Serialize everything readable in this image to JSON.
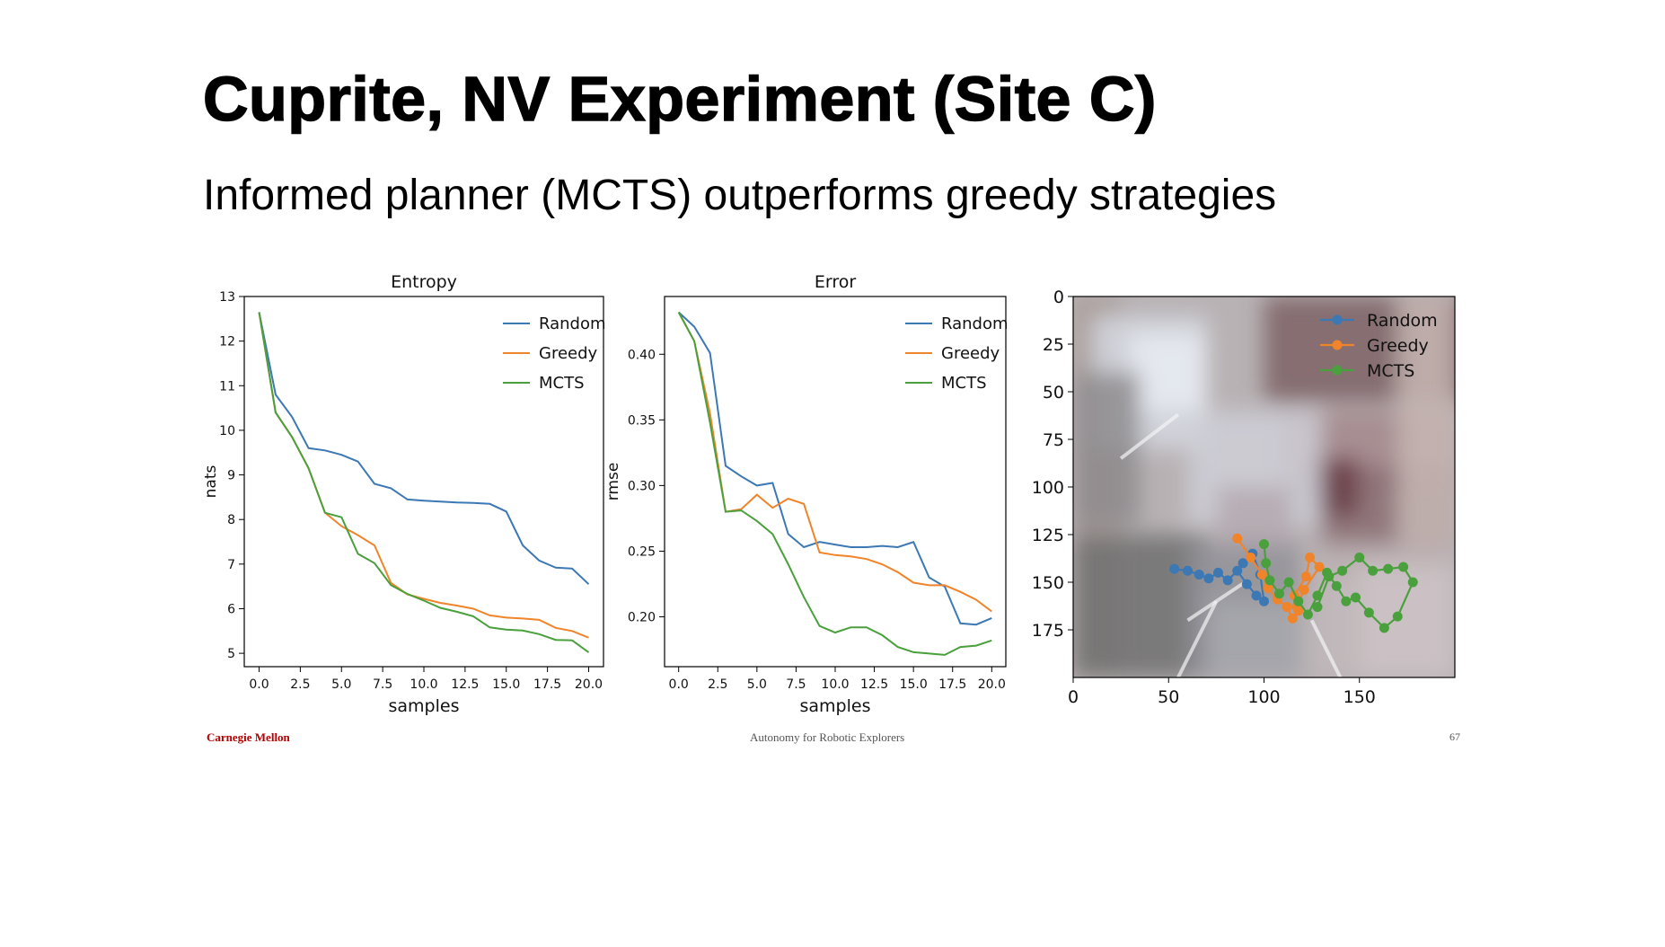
{
  "slide": {
    "title": "Cuprite, NV Experiment (Site C)",
    "subtitle": "Informed planner (MCTS) outperforms greedy strategies"
  },
  "footer": {
    "left": "Carnegie Mellon",
    "center": "Autonomy for Robotic Explorers",
    "right": "67"
  },
  "colors": {
    "random": "#3c78b4",
    "greedy": "#f0842a",
    "mcts": "#4aa03c"
  },
  "chart_data": [
    {
      "type": "line",
      "title": "Entropy",
      "xlabel": "samples",
      "ylabel": "nats",
      "xlim": [
        -0.9,
        20.9
      ],
      "ylim": [
        4.7,
        13.0
      ],
      "xticks": [
        "0.0",
        "2.5",
        "5.0",
        "7.5",
        "10.0",
        "12.5",
        "15.0",
        "17.5",
        "20.0"
      ],
      "yticks": [
        "5",
        "6",
        "7",
        "8",
        "9",
        "10",
        "11",
        "12",
        "13"
      ],
      "legend_position": "top-right",
      "x": [
        0,
        1,
        2,
        3,
        4,
        5,
        6,
        7,
        8,
        9,
        10,
        11,
        12,
        13,
        14,
        15,
        16,
        17,
        18,
        19,
        20
      ],
      "series": [
        {
          "name": "Random",
          "color": "#3c78b4",
          "values": [
            12.65,
            10.8,
            10.3,
            9.6,
            9.55,
            9.45,
            9.3,
            8.8,
            8.7,
            8.45,
            8.42,
            8.4,
            8.38,
            8.37,
            8.35,
            8.18,
            7.42,
            7.08,
            6.92,
            6.9,
            6.55
          ]
        },
        {
          "name": "Greedy",
          "color": "#f0842a",
          "values": [
            12.65,
            10.4,
            9.85,
            9.15,
            8.15,
            7.85,
            7.65,
            7.42,
            6.58,
            6.32,
            6.22,
            6.13,
            6.07,
            6.0,
            5.85,
            5.8,
            5.78,
            5.75,
            5.57,
            5.5,
            5.35
          ]
        },
        {
          "name": "MCTS",
          "color": "#4aa03c",
          "values": [
            12.65,
            10.4,
            9.85,
            9.15,
            8.15,
            8.05,
            7.23,
            7.02,
            6.53,
            6.33,
            6.18,
            6.02,
            5.93,
            5.83,
            5.58,
            5.53,
            5.51,
            5.43,
            5.3,
            5.29,
            5.02
          ]
        }
      ]
    },
    {
      "type": "line",
      "title": "Error",
      "xlabel": "samples",
      "ylabel": "rmse",
      "xlim": [
        -0.9,
        20.9
      ],
      "ylim": [
        0.162,
        0.444
      ],
      "xticks": [
        "0.0",
        "2.5",
        "5.0",
        "7.5",
        "10.0",
        "12.5",
        "15.0",
        "17.5",
        "20.0"
      ],
      "yticks": [
        "0.20",
        "0.25",
        "0.30",
        "0.35",
        "0.40"
      ],
      "legend_position": "top-right",
      "x": [
        0,
        1,
        2,
        3,
        4,
        5,
        6,
        7,
        8,
        9,
        10,
        11,
        12,
        13,
        14,
        15,
        16,
        17,
        18,
        19,
        20
      ],
      "series": [
        {
          "name": "Random",
          "color": "#3c78b4",
          "values": [
            0.432,
            0.421,
            0.401,
            0.315,
            0.307,
            0.3,
            0.302,
            0.263,
            0.253,
            0.257,
            0.255,
            0.253,
            0.253,
            0.254,
            0.253,
            0.257,
            0.23,
            0.223,
            0.195,
            0.194,
            0.199
          ]
        },
        {
          "name": "Greedy",
          "color": "#f0842a",
          "values": [
            0.432,
            0.41,
            0.355,
            0.28,
            0.282,
            0.293,
            0.283,
            0.29,
            0.286,
            0.249,
            0.247,
            0.246,
            0.244,
            0.24,
            0.234,
            0.226,
            0.224,
            0.224,
            0.219,
            0.213,
            0.204
          ]
        },
        {
          "name": "MCTS",
          "color": "#4aa03c",
          "values": [
            0.432,
            0.41,
            0.348,
            0.28,
            0.281,
            0.273,
            0.263,
            0.24,
            0.215,
            0.193,
            0.188,
            0.192,
            0.192,
            0.186,
            0.177,
            0.173,
            0.172,
            0.171,
            0.177,
            0.178,
            0.182
          ]
        }
      ]
    },
    {
      "type": "scatter",
      "title": "",
      "background": "satellite image of Cuprite, NV",
      "xlim": [
        0,
        200
      ],
      "ylim": [
        200,
        0
      ],
      "xticks": [
        "0",
        "50",
        "100",
        "150"
      ],
      "yticks": [
        "0",
        "25",
        "50",
        "75",
        "100",
        "125",
        "150",
        "175"
      ],
      "legend_position": "top-right",
      "series": [
        {
          "name": "Random",
          "color": "#3c78b4",
          "x": [
            53,
            60,
            66,
            71,
            76,
            81,
            86,
            91,
            96,
            100,
            98,
            94,
            89
          ],
          "y": [
            143,
            144,
            146,
            148,
            145,
            149,
            144,
            151,
            157,
            160,
            146,
            135,
            140
          ]
        },
        {
          "name": "Greedy",
          "color": "#f0842a",
          "x": [
            86,
            93,
            99,
            102,
            107,
            112,
            115,
            118,
            116,
            122,
            124,
            129,
            121,
            117
          ],
          "y": [
            127,
            137,
            146,
            153,
            159,
            163,
            169,
            165,
            157,
            147,
            137,
            142,
            154,
            163
          ]
        },
        {
          "name": "MCTS",
          "color": "#4aa03c",
          "x": [
            100,
            101,
            103,
            108,
            113,
            118,
            123,
            128,
            133,
            138,
            143,
            148,
            155,
            163,
            170,
            178,
            173,
            165,
            157,
            150,
            141,
            134,
            128
          ],
          "y": [
            130,
            140,
            149,
            156,
            150,
            160,
            167,
            157,
            145,
            152,
            160,
            158,
            166,
            174,
            168,
            150,
            142,
            143,
            144,
            137,
            144,
            147,
            163
          ]
        }
      ]
    }
  ]
}
